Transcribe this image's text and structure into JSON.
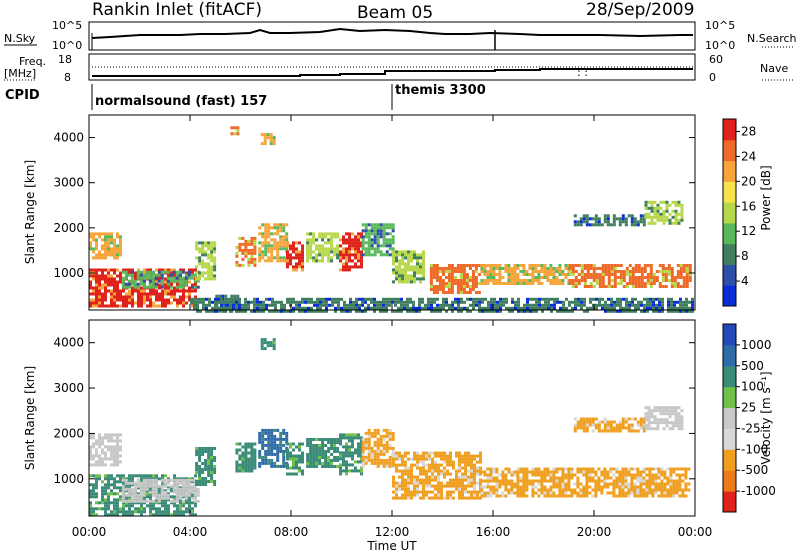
{
  "header": {
    "station": "Rankin Inlet (fitACF)",
    "beam": "Beam 05",
    "date": "28/Sep/2009"
  },
  "noise_panel": {
    "left_label": "N.Sky",
    "right_label": "N.Search",
    "left_ticks": [
      "10^5",
      "10^0"
    ],
    "right_ticks": [
      "10^5",
      "10^0"
    ]
  },
  "freq_panel": {
    "left_label_1": "Freq.",
    "left_label_2": "[MHz]",
    "right_label": "Nave",
    "left_ticks": [
      "18",
      "8"
    ],
    "right_ticks": [
      "60",
      "0"
    ]
  },
  "cpid_panel": {
    "label": "CPID",
    "programs": [
      {
        "name": "normalsound (fast) 157",
        "start_hour": 0
      },
      {
        "name": "themis 3300",
        "start_hour": 12
      }
    ]
  },
  "colors": {
    "power_scale": [
      "#0a2ed6",
      "#2d4fa8",
      "#3f7f5f",
      "#59b85a",
      "#b7d84a",
      "#f6e34a",
      "#f7a43a",
      "#ef6a28",
      "#e0221d"
    ],
    "velocity_scale": [
      "#2549b8",
      "#2f6aa9",
      "#3b8b79",
      "#6fc14a",
      "#c8c8c8",
      "#d8d8d8",
      "#f0a020",
      "#ef7a1a",
      "#e0221d"
    ]
  },
  "chart_data": [
    {
      "type": "heatmap",
      "title": "Power",
      "ylabel": "Slant Range [km]",
      "xlabel": "",
      "ylim": [
        180,
        4500
      ],
      "xlim": [
        0,
        24
      ],
      "y_ticks": [
        1000,
        2000,
        3000,
        4000
      ],
      "colorbar": {
        "label": "Power [dB]",
        "ticks": [
          4,
          8,
          12,
          16,
          20,
          24,
          28
        ],
        "range": [
          0,
          30
        ]
      },
      "regions": [
        {
          "t0": 0.0,
          "t1": 4.2,
          "r0": 300,
          "r1": 1100,
          "value": 28
        },
        {
          "t0": 0.0,
          "t1": 1.3,
          "r0": 1350,
          "r1": 1900,
          "value": 20
        },
        {
          "t0": 1.3,
          "t1": 4.3,
          "r0": 700,
          "r1": 1050,
          "value": 12
        },
        {
          "t0": 4.2,
          "t1": 5.0,
          "r0": 900,
          "r1": 1700,
          "value": 16
        },
        {
          "t0": 5.0,
          "t1": 5.9,
          "r0": 180,
          "r1": 520,
          "value": 8
        },
        {
          "t0": 5.8,
          "t1": 6.6,
          "r0": 1200,
          "r1": 1800,
          "value": 24
        },
        {
          "t0": 6.7,
          "t1": 7.8,
          "r0": 1300,
          "r1": 2100,
          "value": 20
        },
        {
          "t0": 7.8,
          "t1": 8.5,
          "r0": 1100,
          "r1": 1700,
          "value": 28
        },
        {
          "t0": 8.6,
          "t1": 9.8,
          "r0": 1300,
          "r1": 1900,
          "value": 16
        },
        {
          "t0": 9.9,
          "t1": 10.8,
          "r0": 1100,
          "r1": 1900,
          "value": 28
        },
        {
          "t0": 10.8,
          "t1": 12.0,
          "r0": 1400,
          "r1": 2100,
          "value": 12
        },
        {
          "t0": 12.0,
          "t1": 13.3,
          "r0": 800,
          "r1": 1500,
          "value": 16
        },
        {
          "t0": 13.5,
          "t1": 15.5,
          "r0": 600,
          "r1": 1200,
          "value": 24
        },
        {
          "t0": 15.5,
          "t1": 19.0,
          "r0": 750,
          "r1": 1200,
          "value": 20
        },
        {
          "t0": 19.0,
          "t1": 23.8,
          "r0": 700,
          "r1": 1200,
          "value": 24
        },
        {
          "t0": 19.2,
          "t1": 22.0,
          "r0": 2100,
          "r1": 2300,
          "value": 8
        },
        {
          "t0": 22.0,
          "t1": 23.5,
          "r0": 2100,
          "r1": 2600,
          "value": 16
        },
        {
          "t0": 4.0,
          "t1": 23.9,
          "r0": 180,
          "r1": 450,
          "value": 8
        },
        {
          "t0": 6.8,
          "t1": 7.3,
          "r0": 3900,
          "r1": 4100,
          "value": 20
        },
        {
          "t0": 5.6,
          "t1": 5.9,
          "r0": 4100,
          "r1": 4250,
          "value": 24
        }
      ]
    },
    {
      "type": "heatmap",
      "title": "Velocity",
      "ylabel": "Slant Range [km]",
      "xlabel": "Time UT",
      "ylim": [
        180,
        4500
      ],
      "xlim": [
        0,
        24
      ],
      "y_ticks": [
        1000,
        2000,
        3000,
        4000
      ],
      "x_ticks": [
        "00:00",
        "04:00",
        "08:00",
        "12:00",
        "16:00",
        "20:00",
        "00:00"
      ],
      "colorbar": {
        "label": "Velocity [m s⁻¹]",
        "ticks": [
          1000,
          500,
          100,
          25,
          -25,
          -100,
          -500,
          -1000
        ]
      },
      "regions": [
        {
          "t0": 0.0,
          "t1": 4.2,
          "r0": 200,
          "r1": 1100,
          "value": 100
        },
        {
          "t0": 0.0,
          "t1": 1.3,
          "r0": 1300,
          "r1": 2000,
          "value": 0
        },
        {
          "t0": 1.3,
          "t1": 4.3,
          "r0": 500,
          "r1": 1000,
          "value": 0
        },
        {
          "t0": 4.2,
          "t1": 5.0,
          "r0": 900,
          "r1": 1700,
          "value": 300
        },
        {
          "t0": 5.8,
          "t1": 6.6,
          "r0": 1200,
          "r1": 1800,
          "value": 200
        },
        {
          "t0": 6.7,
          "t1": 7.8,
          "r0": 1300,
          "r1": 2100,
          "value": 800
        },
        {
          "t0": 7.8,
          "t1": 8.5,
          "r0": 1100,
          "r1": 1800,
          "value": 300
        },
        {
          "t0": 8.6,
          "t1": 9.8,
          "r0": 1300,
          "r1": 1900,
          "value": 200
        },
        {
          "t0": 9.9,
          "t1": 10.8,
          "r0": 1100,
          "r1": 2000,
          "value": 300
        },
        {
          "t0": 10.8,
          "t1": 12.0,
          "r0": 1300,
          "r1": 2100,
          "value": -200
        },
        {
          "t0": 12.0,
          "t1": 15.5,
          "r0": 600,
          "r1": 1600,
          "value": -300
        },
        {
          "t0": 15.5,
          "t1": 23.8,
          "r0": 650,
          "r1": 1250,
          "value": -300
        },
        {
          "t0": 19.2,
          "t1": 22.0,
          "r0": 2050,
          "r1": 2350,
          "value": -200
        },
        {
          "t0": 22.0,
          "t1": 23.5,
          "r0": 2100,
          "r1": 2600,
          "value": 0
        },
        {
          "t0": 6.8,
          "t1": 7.3,
          "r0": 3900,
          "r1": 4100,
          "value": 100
        }
      ]
    }
  ]
}
